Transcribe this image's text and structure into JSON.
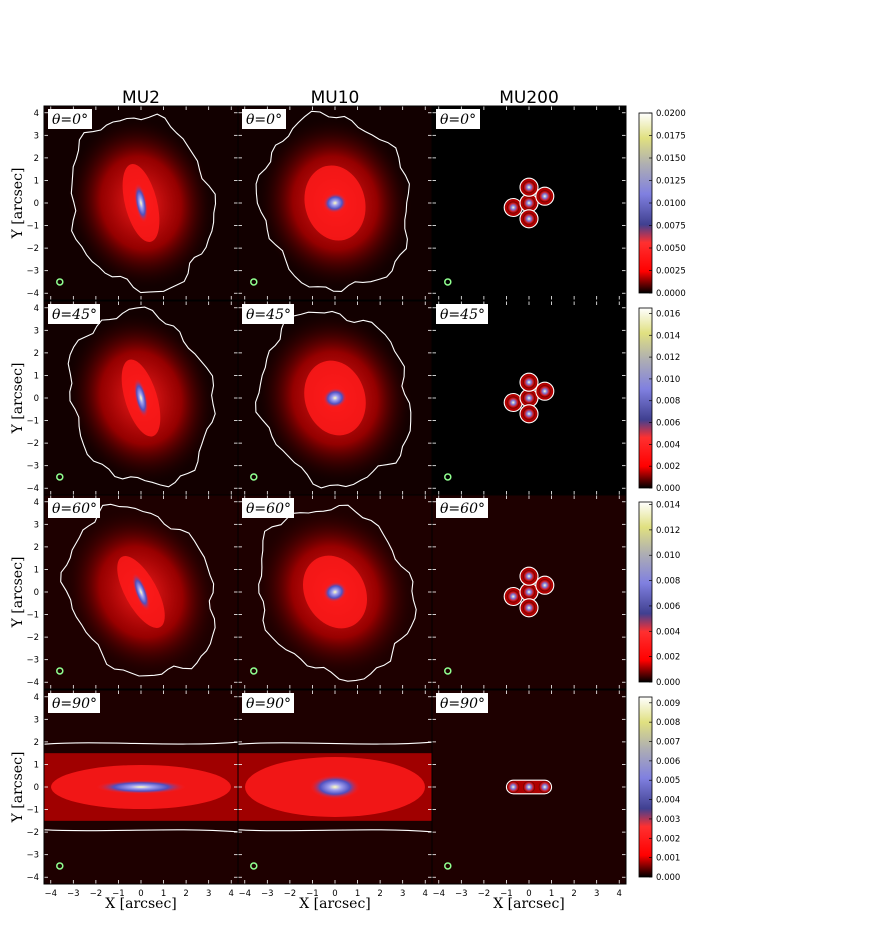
{
  "chart_data": {
    "type": "heatmap",
    "columns": [
      "MU2",
      "MU10",
      "MU200"
    ],
    "rows": [
      {
        "theta": "θ=0°",
        "colorbar_ticks": [
          "0.0200",
          "0.0175",
          "0.0150",
          "0.0125",
          "0.0100",
          "0.0075",
          "0.0050",
          "0.0025",
          "0.0000"
        ],
        "colorbar_range": [
          0,
          0.02
        ]
      },
      {
        "theta": "θ=45°",
        "colorbar_ticks": [
          "0.016",
          "0.014",
          "0.012",
          "0.010",
          "0.008",
          "0.006",
          "0.004",
          "0.002",
          "0.000"
        ],
        "colorbar_range": [
          0,
          0.0165
        ]
      },
      {
        "theta": "θ=60°",
        "colorbar_ticks": [
          "0.014",
          "0.012",
          "0.010",
          "0.008",
          "0.006",
          "0.004",
          "0.002",
          "0.000"
        ],
        "colorbar_range": [
          0,
          0.0142
        ]
      },
      {
        "theta": "θ=90°",
        "colorbar_ticks": [
          "0.009",
          "0.008",
          "0.007",
          "0.006",
          "0.005",
          "0.004",
          "0.003",
          "0.002",
          "0.001",
          "0.000"
        ],
        "colorbar_range": [
          0,
          0.0093
        ]
      }
    ],
    "xlabel": "X [arcsec]",
    "ylabel": "Y [arcsec]",
    "xlim": [
      -4.3,
      4.3
    ],
    "ylim": [
      -4.3,
      4.3
    ],
    "xticks": [
      "−4",
      "−3",
      "−2",
      "−1",
      "0",
      "1",
      "2",
      "3",
      "4"
    ],
    "yticks": [
      "4",
      "3",
      "2",
      "1",
      "0",
      "−1",
      "−2",
      "−3",
      "−4"
    ],
    "colormap": [
      "#000000",
      "#ff0000",
      "#7070e0",
      "#ffff80",
      "#ffffff"
    ],
    "contour_color": "#ffffff",
    "beam_marker_color": "#90ff90"
  }
}
